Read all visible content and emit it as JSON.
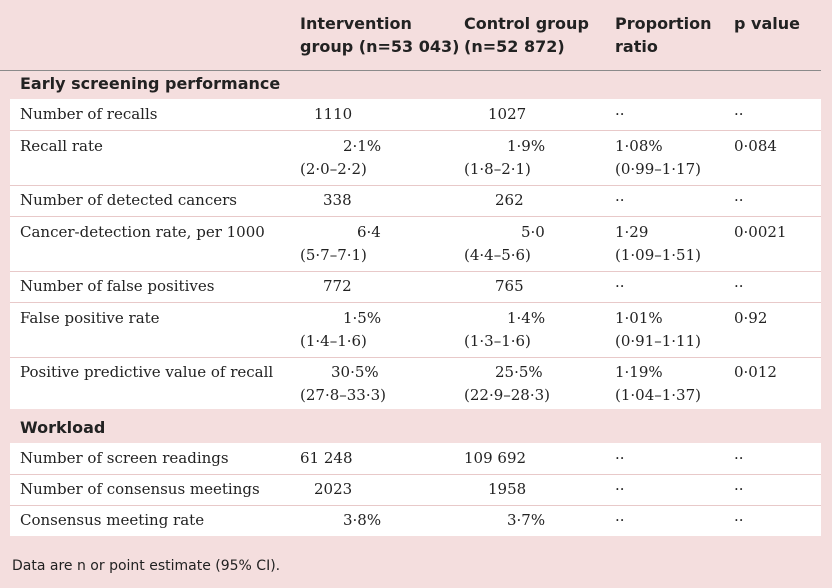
{
  "headers": {
    "intervention": [
      "Intervention",
      "group (n=53 043)"
    ],
    "control": [
      "Control group",
      "(n=52 872)"
    ],
    "ratio": [
      "Proportion",
      "ratio"
    ],
    "pvalue": "p value"
  },
  "sections": [
    {
      "title": "Early screening performance",
      "rows": [
        {
          "label": "Number of recalls",
          "int": "1110",
          "int_ci": "",
          "ctl": "1027",
          "ctl_ci": "",
          "ratio": "··",
          "ratio_ci": "",
          "p": "··"
        },
        {
          "label": "Recall rate",
          "int": "2·1%",
          "int_ci": "(2·0–2·2)",
          "ctl": "1·9%",
          "ctl_ci": "(1·8–2·1)",
          "ratio": "1·08%",
          "ratio_ci": "(0·99–1·17)",
          "p": "0·084"
        },
        {
          "label": "Number of detected cancers",
          "int": "338",
          "int_ci": "",
          "ctl": "262",
          "ctl_ci": "",
          "ratio": "··",
          "ratio_ci": "",
          "p": "··"
        },
        {
          "label": "Cancer-detection rate, per 1000",
          "int": "6·4",
          "int_ci": "(5·7–7·1)",
          "ctl": "5·0",
          "ctl_ci": "(4·4–5·6)",
          "ratio": "1·29",
          "ratio_ci": "(1·09–1·51)",
          "p": "0·0021"
        },
        {
          "label": "Number of false positives",
          "int": "772",
          "int_ci": "",
          "ctl": "765",
          "ctl_ci": "",
          "ratio": "··",
          "ratio_ci": "",
          "p": "··"
        },
        {
          "label": "False positive rate",
          "int": "1·5%",
          "int_ci": "(1·4–1·6)",
          "ctl": "1·4%",
          "ctl_ci": "(1·3–1·6)",
          "ratio": "1·01%",
          "ratio_ci": "(0·91–1·11)",
          "p": "0·92"
        },
        {
          "label": "Positive predictive value of recall",
          "int": "30·5%",
          "int_ci": "(27·8–33·3)",
          "ctl": "25·5%",
          "ctl_ci": "(22·9–28·3)",
          "ratio": "1·19%",
          "ratio_ci": "(1·04–1·37)",
          "p": "0·012"
        }
      ]
    },
    {
      "title": "Workload",
      "rows": [
        {
          "label": "Number of screen readings",
          "int": "61 248",
          "int_ci": "",
          "ctl": "109 692",
          "ctl_ci": "",
          "ratio": "··",
          "ratio_ci": "",
          "p": "··"
        },
        {
          "label": "Number of consensus meetings",
          "int": "2023",
          "int_ci": "",
          "ctl": "1958",
          "ctl_ci": "",
          "ratio": "··",
          "ratio_ci": "",
          "p": "··"
        },
        {
          "label": "Consensus meeting rate",
          "int": "3·8%",
          "int_ci": "",
          "ctl": "3·7%",
          "ctl_ci": "",
          "ratio": "··",
          "ratio_ci": "",
          "p": "··"
        }
      ]
    }
  ],
  "footnote": "Data are n or point estimate (95% CI)."
}
